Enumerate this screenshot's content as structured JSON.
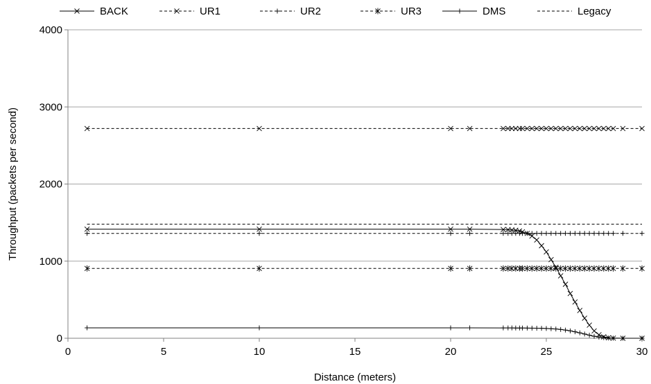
{
  "chart_data": {
    "type": "line",
    "title": "",
    "xlabel": "Distance (meters)",
    "ylabel": "Throughput (packets per second)",
    "xlim": [
      0,
      30
    ],
    "ylim": [
      0,
      4000
    ],
    "x_ticks": [
      "0",
      "5",
      "10",
      "15",
      "20",
      "25",
      "30"
    ],
    "y_ticks": [
      "0",
      "1000",
      "2000",
      "3000",
      "4000"
    ],
    "grid": "horizontal",
    "legend_position": "top",
    "x": [
      1,
      10,
      20,
      21,
      22.75,
      23,
      23.2,
      23.4,
      23.6,
      23.75,
      24,
      24.25,
      24.5,
      24.75,
      25,
      25.25,
      25.5,
      25.75,
      26,
      26.25,
      26.5,
      26.75,
      27,
      27.25,
      27.5,
      27.75,
      28,
      28.25,
      28.5,
      29,
      30
    ],
    "series": [
      {
        "name": "BACK",
        "style": "solid",
        "marker": "x",
        "values": [
          1415,
          1415,
          1415,
          1415,
          1410,
          1408,
          1405,
          1400,
          1392,
          1380,
          1360,
          1325,
          1275,
          1200,
          1120,
          1020,
          920,
          810,
          700,
          580,
          470,
          360,
          260,
          170,
          95,
          45,
          18,
          6,
          2,
          0,
          0
        ]
      },
      {
        "name": "UR1",
        "style": "dashed",
        "marker": "x",
        "values": [
          2720,
          2720,
          2720,
          2720,
          2720,
          2720,
          2720,
          2720,
          2720,
          2720,
          2720,
          2720,
          2720,
          2720,
          2720,
          2720,
          2720,
          2720,
          2720,
          2720,
          2720,
          2720,
          2720,
          2720,
          2720,
          2720,
          2720,
          2720,
          2720,
          2720,
          2720
        ]
      },
      {
        "name": "UR2",
        "style": "dashed",
        "marker": "+",
        "values": [
          1360,
          1360,
          1360,
          1360,
          1360,
          1360,
          1360,
          1360,
          1360,
          1360,
          1360,
          1360,
          1360,
          1360,
          1360,
          1360,
          1360,
          1360,
          1360,
          1360,
          1360,
          1360,
          1360,
          1360,
          1360,
          1360,
          1360,
          1360,
          1360,
          1360,
          1360
        ]
      },
      {
        "name": "UR3",
        "style": "dashed",
        "marker": "*",
        "values": [
          905,
          905,
          905,
          905,
          905,
          905,
          905,
          905,
          905,
          905,
          905,
          905,
          905,
          905,
          905,
          905,
          905,
          905,
          905,
          905,
          905,
          905,
          905,
          905,
          905,
          905,
          905,
          905,
          905,
          905,
          905
        ]
      },
      {
        "name": "DMS",
        "style": "solid",
        "marker": "+",
        "values": [
          135,
          135,
          135,
          135,
          134,
          134,
          134,
          133,
          133,
          133,
          132,
          131,
          130,
          129,
          127,
          124,
          120,
          114,
          106,
          96,
          84,
          70,
          55,
          40,
          26,
          15,
          8,
          3,
          1,
          0,
          0
        ]
      },
      {
        "name": "Legacy",
        "style": "dashed",
        "marker": "none",
        "values": [
          1480,
          1480,
          1480,
          1480,
          1480,
          1480,
          1480,
          1480,
          1480,
          1480,
          1480,
          1480,
          1480,
          1480,
          1480,
          1480,
          1480,
          1480,
          1480,
          1480,
          1480,
          1480,
          1480,
          1480,
          1480,
          1480,
          1480,
          1480,
          1480,
          1480,
          1480
        ]
      }
    ]
  }
}
